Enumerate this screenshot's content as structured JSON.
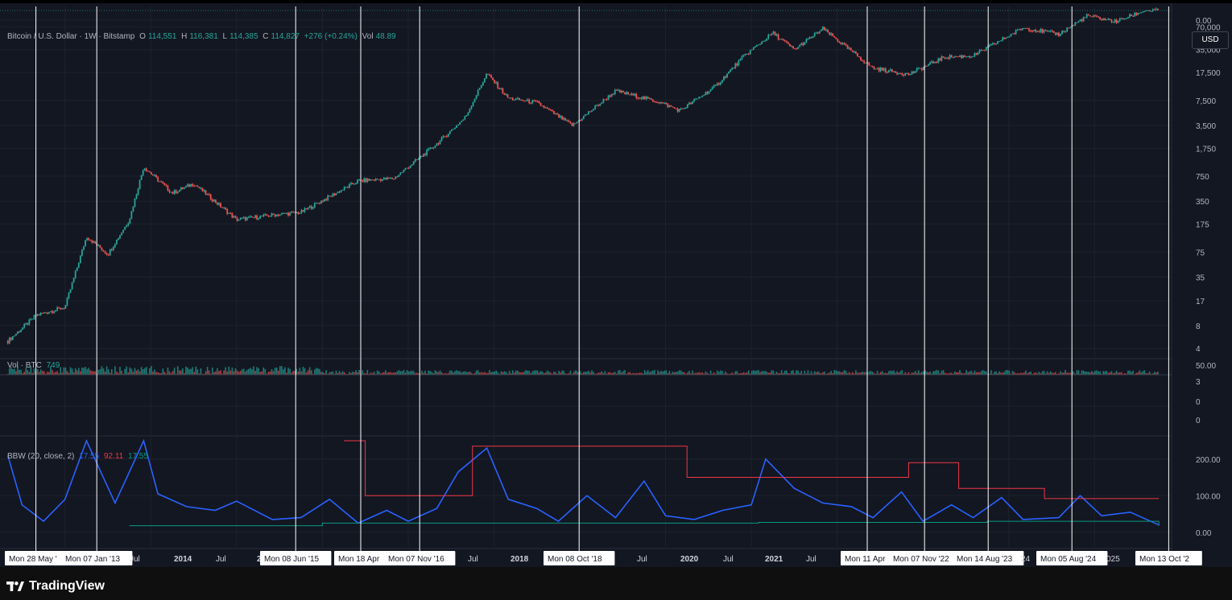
{
  "app": {
    "brand": "TradingView"
  },
  "legend": {
    "title": "Bitcoin / U.S. Dollar · 1W · Bitstamp",
    "o_label": "O",
    "o": "114,551",
    "h_label": "H",
    "h": "116,381",
    "l_label": "L",
    "l": "114,385",
    "c_label": "C",
    "c": "114,827",
    "change": "+276 (+0.24%)",
    "vol_label": "Vol",
    "vol": "48.89"
  },
  "volume_legend": {
    "label": "Vol · BTC",
    "value": "749"
  },
  "bbw_legend": {
    "label": "BBW (20, close, 2)",
    "v1": "17.55",
    "v2": "92.11",
    "v3": "17.55"
  },
  "currency_button": "USD",
  "colors": {
    "background": "#131722",
    "up": "#26a69a",
    "down": "#ef5350",
    "bbw": "#2962ff",
    "highest": "#f23645",
    "lowest": "#089981",
    "vline": "#ffffff"
  },
  "chart_data": [
    {
      "type": "line",
      "title": "Bitcoin / U.S. Dollar · 1W · Bitstamp",
      "yscale": "log",
      "ylim": [
        3,
        130000
      ],
      "yticks": [
        "0.00",
        "70,000",
        "35,000",
        "17,500",
        "7,500",
        "3,500",
        "1,750",
        "750",
        "350",
        "175",
        "75",
        "35",
        "17",
        "8",
        "4"
      ],
      "x_labels": [
        "Mon 28 May '",
        "Mon 07 Jan '13",
        "Jul",
        "2014",
        "Jul",
        "201",
        "Mon 08 Jun '15",
        "Mon 18 Apr",
        "Mon 07 Nov '16",
        "Jul",
        "2018",
        "Mon 08 Oct '18",
        "Jul",
        "2020",
        "Jul",
        "2021",
        "Jul",
        "Mon 11 Apr",
        "Mon 07 Nov '22",
        "Mon 14 Aug '23",
        "24",
        "Mon 05 Aug '24",
        "025",
        "Mon 13 Oct '2"
      ],
      "series": [
        {
          "x": [
            "2012-05",
            "2012-09",
            "2013-01",
            "2013-04",
            "2013-07",
            "2013-10",
            "2013-12",
            "2014-04",
            "2014-07",
            "2015-01",
            "2015-06",
            "2015-10",
            "2016-06",
            "2016-11",
            "2017-05",
            "2017-09",
            "2017-12",
            "2018-03",
            "2018-07",
            "2018-12",
            "2019-06",
            "2019-12",
            "2020-03",
            "2020-08",
            "2020-12",
            "2021-04",
            "2021-07",
            "2021-11",
            "2022-06",
            "2022-11",
            "2023-04",
            "2023-08",
            "2024-03",
            "2024-08",
            "2024-12",
            "2025-04",
            "2025-08",
            "2025-10"
          ],
          "values": [
            5,
            11,
            14,
            120,
            70,
            200,
            1000,
            450,
            600,
            200,
            230,
            250,
            650,
            700,
            2000,
            4500,
            17000,
            8000,
            7000,
            3500,
            10000,
            7200,
            5500,
            11500,
            29000,
            58000,
            35000,
            66000,
            20000,
            16500,
            28000,
            29000,
            68000,
            56000,
            98000,
            82000,
            115000,
            114827
          ]
        }
      ]
    },
    {
      "type": "bar",
      "title": "Vol · BTC",
      "yticks": [
        "50.00",
        "3",
        "0",
        "0"
      ]
    },
    {
      "type": "line",
      "title": "BBW (20, close, 2)",
      "ylim": [
        -40,
        250
      ],
      "yticks": [
        "200.00",
        "100.00",
        "0.00"
      ],
      "series": [
        {
          "name": "BBW",
          "x": [
            "2012-05",
            "2012-07",
            "2012-10",
            "2013-01",
            "2013-04",
            "2013-08",
            "2013-12",
            "2014-02",
            "2014-06",
            "2014-10",
            "2015-01",
            "2015-06",
            "2015-10",
            "2016-02",
            "2016-06",
            "2016-10",
            "2017-01",
            "2017-05",
            "2017-08",
            "2017-12",
            "2018-03",
            "2018-07",
            "2018-10",
            "2019-02",
            "2019-06",
            "2019-10",
            "2020-01",
            "2020-05",
            "2020-09",
            "2021-01",
            "2021-03",
            "2021-07",
            "2021-11",
            "2022-03",
            "2022-06",
            "2022-10",
            "2023-01",
            "2023-05",
            "2023-08",
            "2023-12",
            "2024-03",
            "2024-08",
            "2024-11",
            "2025-02",
            "2025-06",
            "2025-10"
          ],
          "values": [
            210,
            75,
            30,
            90,
            260,
            80,
            290,
            105,
            70,
            60,
            85,
            35,
            40,
            90,
            25,
            60,
            30,
            65,
            165,
            230,
            90,
            65,
            30,
            100,
            40,
            140,
            45,
            35,
            60,
            75,
            200,
            120,
            80,
            70,
            40,
            110,
            30,
            75,
            40,
            95,
            35,
            40,
            100,
            45,
            55,
            20
          ]
        },
        {
          "name": "Highest expansion",
          "x": [
            "2016-04",
            "2016-07",
            "2017-04",
            "2017-10",
            "2020-02",
            "2020-04",
            "2022-11",
            "2023-06",
            "2024-04",
            "2024-06",
            "2025-10"
          ],
          "values": [
            250,
            100,
            100,
            235,
            235,
            150,
            190,
            120,
            120,
            92,
            92
          ]
        },
        {
          "name": "Lowest contraction",
          "x": [
            "2013-10",
            "2016-01",
            "2021-02",
            "2023-10",
            "2025-10"
          ],
          "values": [
            18,
            25,
            27,
            30,
            18
          ]
        }
      ]
    }
  ]
}
